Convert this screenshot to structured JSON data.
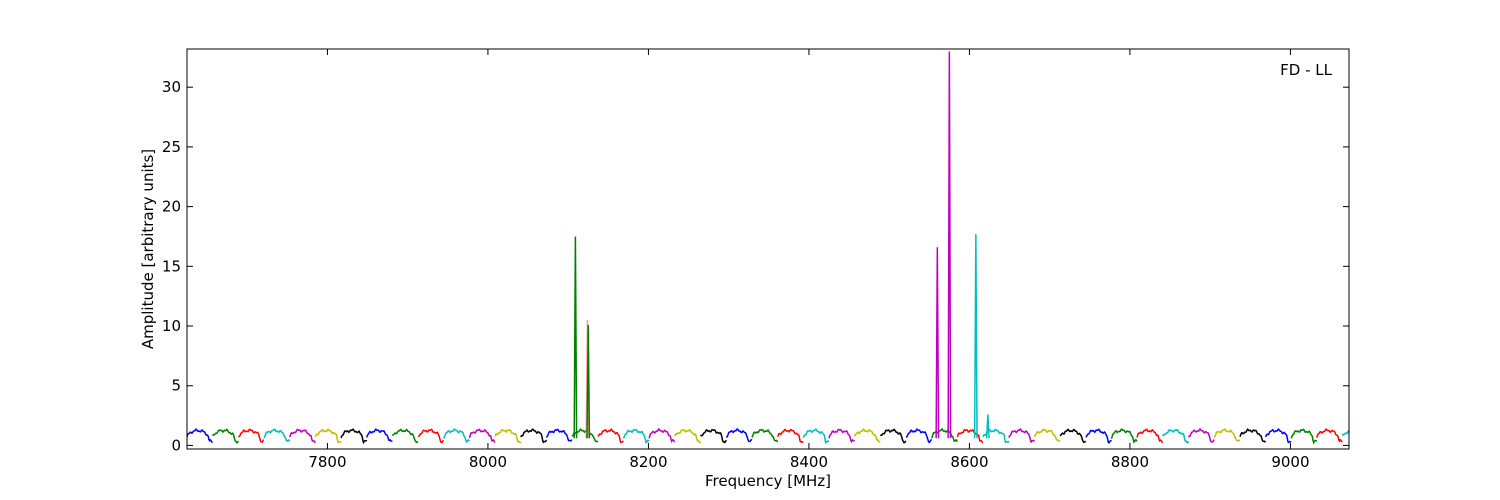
{
  "chart_data": {
    "type": "line",
    "title": "",
    "annotation": "FD - LL",
    "xlabel": "Frequency [MHz]",
    "ylabel": "Amplitude [arbitrary units]",
    "xlim": [
      7625,
      9073
    ],
    "ylim": [
      -0.3,
      33.2
    ],
    "xticks": [
      7800,
      8000,
      8200,
      8400,
      8600,
      8800,
      9000
    ],
    "yticks": [
      0,
      5,
      10,
      15,
      20,
      25,
      30
    ],
    "grid": false,
    "legend": "none",
    "band": {
      "start": 7625,
      "width": 32,
      "scallop_max": 1.25,
      "scallop_min": 0.35,
      "color_cycle": [
        "#0000ff",
        "#008000",
        "#ff0000",
        "#00bfbf",
        "#bf00bf",
        "#bfbf00",
        "#000000"
      ]
    },
    "spikes": [
      {
        "x": 8109,
        "y": 17.5,
        "color": "#008000"
      },
      {
        "x": 8124,
        "y": 10.5,
        "color": "#ff9999"
      },
      {
        "x": 8125,
        "y": 10.1,
        "color": "#008000"
      },
      {
        "x": 8560,
        "y": 16.6,
        "color": "#bf00bf"
      },
      {
        "x": 8575,
        "y": 33.0,
        "color": "#bf00bf"
      },
      {
        "x": 8608,
        "y": 17.7,
        "color": "#00bfbf"
      },
      {
        "x": 8623,
        "y": 2.6,
        "color": "#00bfbf"
      }
    ]
  }
}
